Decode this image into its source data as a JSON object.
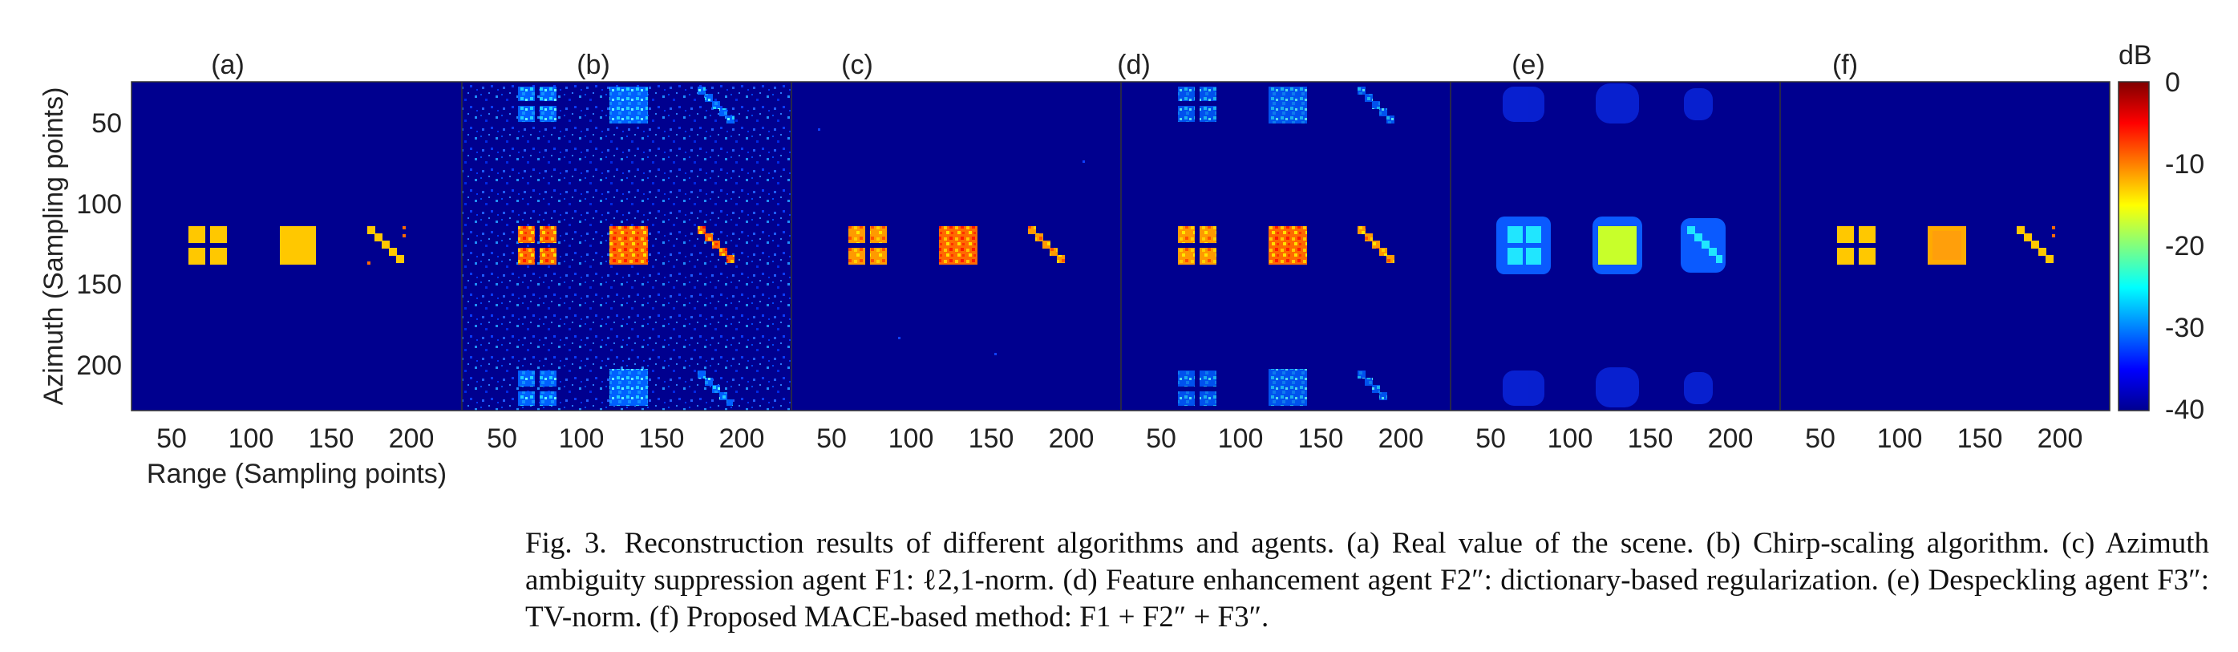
{
  "figure": {
    "panel_labels": [
      "(a)",
      "(b)",
      "(c)",
      "(d)",
      "(e)",
      "(f)"
    ],
    "ylabel": "Azimuth (Sampling points)",
    "xlabel": "Range (Sampling points)",
    "x_ticks": [
      "50",
      "100",
      "150",
      "200"
    ],
    "y_ticks": [
      "50",
      "100",
      "150",
      "200"
    ],
    "colorbar": {
      "unit": "dB",
      "ticks": [
        "0",
        "-10",
        "-20",
        "-30",
        "-40"
      ],
      "range": [
        -40,
        0
      ],
      "colormap": "jet"
    },
    "background_color": "#00008f"
  },
  "caption": {
    "label": "Fig. 3.",
    "text": "Reconstruction results of different algorithms and agents. (a) Real value of the scene. (b) Chirp-scaling algorithm. (c) Azimuth ambiguity suppression agent F1: ℓ2,1-norm. (d) Feature enhancement agent F2″: dictionary-based regularization. (e) Despeckling agent F3″: TV-norm. (f) Proposed MACE-based method: F1 + F2″ + F3″."
  }
}
